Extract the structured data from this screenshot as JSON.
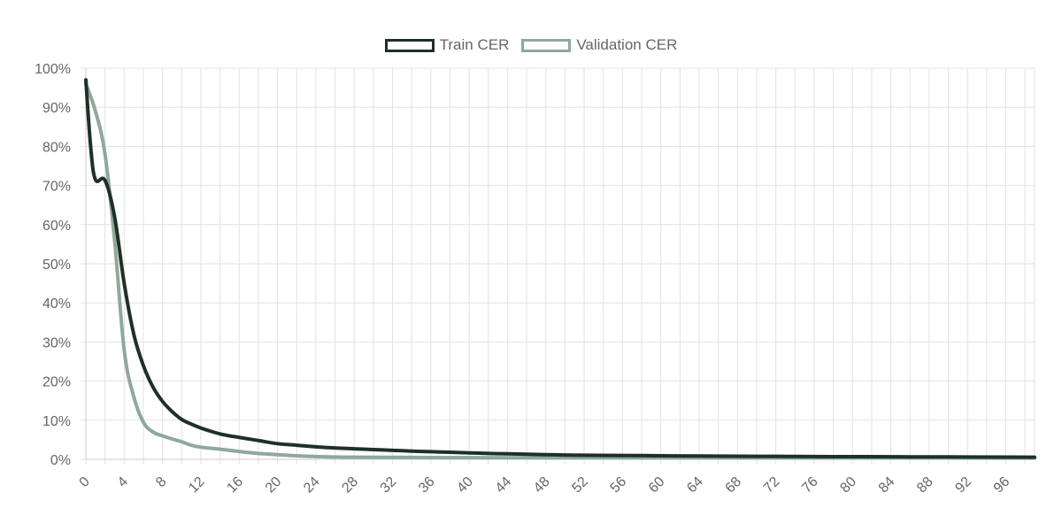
{
  "chart_data": {
    "type": "line",
    "title": "",
    "xlabel": "",
    "ylabel": "",
    "xlim": [
      0,
      99
    ],
    "ylim": [
      0,
      100
    ],
    "x_ticks": [
      0,
      4,
      8,
      12,
      16,
      20,
      24,
      28,
      32,
      36,
      40,
      44,
      48,
      52,
      56,
      60,
      64,
      68,
      72,
      76,
      80,
      84,
      88,
      92,
      96
    ],
    "y_ticks": [
      0,
      10,
      20,
      30,
      40,
      50,
      60,
      70,
      80,
      90,
      100
    ],
    "y_tick_labels": [
      "0%",
      "10%",
      "20%",
      "30%",
      "40%",
      "50%",
      "60%",
      "70%",
      "80%",
      "90%",
      "100%"
    ],
    "grid": true,
    "legend_position": "top-center",
    "series": [
      {
        "name": "Train CER",
        "color": "#1e3028",
        "x": [
          0,
          0.5,
          1,
          2,
          3,
          4,
          5,
          6,
          7,
          8,
          9,
          10,
          11,
          12,
          13,
          14,
          15,
          16,
          18,
          20,
          22,
          24,
          26,
          28,
          30,
          32,
          34,
          36,
          38,
          40,
          42,
          44,
          46,
          48,
          50,
          52,
          55,
          58,
          60,
          64,
          68,
          72,
          76,
          80,
          84,
          88,
          92,
          96,
          99
        ],
        "y": [
          97,
          80,
          71.5,
          71.3,
          62,
          45,
          32,
          24,
          18.5,
          14.8,
          12.2,
          10.2,
          9.0,
          8.0,
          7.2,
          6.5,
          6.0,
          5.6,
          4.8,
          4.0,
          3.6,
          3.2,
          2.9,
          2.7,
          2.5,
          2.3,
          2.1,
          1.95,
          1.8,
          1.65,
          1.5,
          1.4,
          1.3,
          1.2,
          1.1,
          1.05,
          1.0,
          0.95,
          0.9,
          0.85,
          0.8,
          0.75,
          0.7,
          0.68,
          0.65,
          0.62,
          0.6,
          0.58,
          0.55
        ]
      },
      {
        "name": "Validation CER",
        "color": "#8fa89b",
        "x": [
          0,
          1,
          2,
          3,
          4,
          5,
          6,
          7,
          8,
          9,
          10,
          11,
          12,
          14,
          16,
          18,
          20,
          22,
          24,
          26,
          28,
          32,
          36,
          40,
          48,
          56,
          64,
          72,
          80,
          88,
          96,
          99
        ],
        "y": [
          96,
          89,
          78,
          56,
          28,
          16,
          9.5,
          7.0,
          6.0,
          5.2,
          4.5,
          3.6,
          3.1,
          2.6,
          2.0,
          1.5,
          1.2,
          0.9,
          0.7,
          0.6,
          0.55,
          0.5,
          0.45,
          0.42,
          0.4,
          0.38,
          0.36,
          0.35,
          0.34,
          0.33,
          0.32,
          0.32
        ]
      }
    ]
  }
}
